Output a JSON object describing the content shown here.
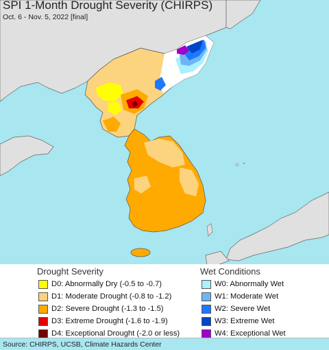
{
  "header": {
    "title": "SPI 1-Month Drought Severity (CHIRPS)",
    "subtitle": "Oct. 6 - Nov. 5, 2022 [final]"
  },
  "map": {
    "colors": {
      "sea": "#a8e6f0",
      "land_outside": "#e0e0e0",
      "land_white": "#ffffff",
      "d0": "#ffff00",
      "d1": "#fcd37f",
      "d2": "#ffaa00",
      "d3": "#e60000",
      "d4": "#730000",
      "w0": "#aaf0ff",
      "w1": "#6fb5f5",
      "w2": "#1e78ff",
      "w3": "#0046c8",
      "w4": "#a000c8"
    }
  },
  "legend": {
    "drought_title": "Drought Severity",
    "wet_title": "Wet Conditions",
    "drought_items": [
      {
        "label": "D0: Abnormally Dry (-0.5 to -0.7)",
        "color": "#ffff00"
      },
      {
        "label": "D1: Moderate Drought (-0.8 to -1.2)",
        "color": "#fcd37f"
      },
      {
        "label": "D2: Severe Drought (-1.3 to -1.5)",
        "color": "#ffaa00"
      },
      {
        "label": "D3: Extreme Drought (-1.6 to -1.9)",
        "color": "#e60000"
      },
      {
        "label": "D4: Exceptional Drought (-2.0 or less)",
        "color": "#730000"
      }
    ],
    "wet_items": [
      {
        "label": "W0: Abnormally Wet",
        "color": "#aaf0ff"
      },
      {
        "label": "W1: Moderate Wet",
        "color": "#6fb5f5"
      },
      {
        "label": "W2: Severe Wet",
        "color": "#1e78ff"
      },
      {
        "label": "W3: Extreme Wet",
        "color": "#0046c8"
      },
      {
        "label": "W4: Exceptional Wet",
        "color": "#a000c8"
      }
    ]
  },
  "footer": {
    "source": "Source: CHIRPS, UCSB, Climate Hazards Center"
  }
}
